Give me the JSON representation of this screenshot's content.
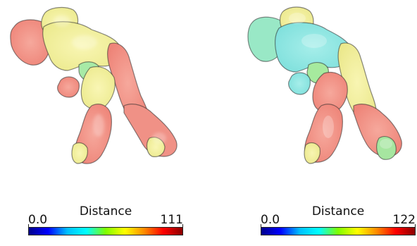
{
  "panels": [
    {
      "id": "left",
      "legend": {
        "title": "Distance",
        "min_label": "0.0",
        "max_label": "111"
      }
    },
    {
      "id": "right",
      "legend": {
        "title": "Distance",
        "min_label": "0.0",
        "max_label": "122"
      }
    }
  ],
  "colormap": {
    "stops": [
      "#00008b",
      "#0000ff",
      "#00bfff",
      "#00ffff",
      "#7fff00",
      "#ffff00",
      "#ff8c00",
      "#ff0000",
      "#8b0000"
    ]
  },
  "surface_colors": {
    "red": "#f08a7e",
    "salmon": "#f4a090",
    "yellow": "#f3f29a",
    "lime": "#c8f08c",
    "green": "#9ee8a2",
    "cyan": "#8fe6e2"
  }
}
